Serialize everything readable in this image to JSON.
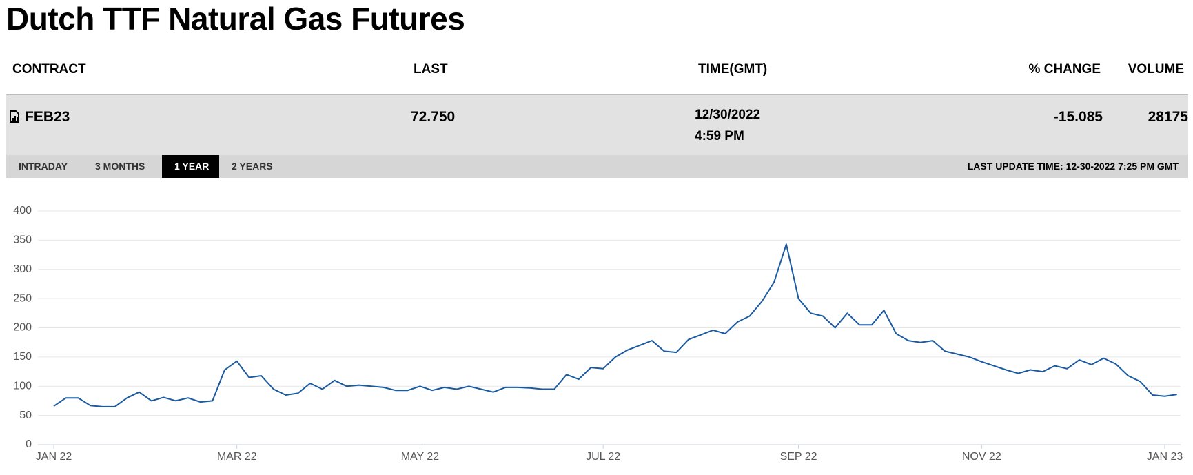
{
  "header": {
    "title": "Dutch TTF Natural Gas Futures"
  },
  "table": {
    "columns": [
      "CONTRACT",
      "LAST",
      "TIME(GMT)",
      "% CHANGE",
      "VOLUME"
    ],
    "rows": [
      {
        "contract": "FEB23",
        "last": "72.750",
        "date": "12/30/2022",
        "time": "4:59 PM",
        "change": "-15.085",
        "volume": "28175"
      }
    ]
  },
  "tabs": [
    "INTRADAY",
    "3 MONTHS",
    "1 YEAR",
    "2 YEARS"
  ],
  "last_update": "LAST UPDATE TIME: 12-30-2022 7:25 PM GMT",
  "chart_data": {
    "type": "line",
    "color": "#1a5aa0",
    "grid": true,
    "ylim": [
      0,
      400
    ],
    "yticks": [
      0,
      50,
      100,
      150,
      200,
      250,
      300,
      350,
      400
    ],
    "categories": [
      "JAN 22",
      null,
      null,
      null,
      null,
      null,
      null,
      null,
      null,
      null,
      null,
      null,
      null,
      null,
      null,
      "MAR 22",
      null,
      null,
      null,
      null,
      null,
      null,
      null,
      null,
      null,
      null,
      null,
      null,
      null,
      null,
      "MAY 22",
      null,
      null,
      null,
      null,
      null,
      null,
      null,
      null,
      null,
      null,
      null,
      null,
      null,
      null,
      "JUL 22",
      null,
      null,
      null,
      null,
      null,
      null,
      null,
      null,
      null,
      null,
      null,
      null,
      null,
      null,
      null,
      "SEP 22",
      null,
      null,
      null,
      null,
      null,
      null,
      null,
      null,
      null,
      null,
      null,
      null,
      null,
      null,
      "NOV 22",
      null,
      null,
      null,
      null,
      null,
      null,
      null,
      null,
      null,
      null,
      null,
      null,
      null,
      null,
      "JAN 23",
      null
    ],
    "values": [
      66,
      80,
      80,
      67,
      65,
      65,
      80,
      90,
      75,
      81,
      75,
      80,
      73,
      75,
      128,
      143,
      115,
      118,
      95,
      85,
      88,
      105,
      95,
      110,
      100,
      102,
      100,
      98,
      93,
      93,
      100,
      93,
      98,
      95,
      100,
      95,
      90,
      98,
      98,
      97,
      95,
      95,
      120,
      112,
      132,
      130,
      150,
      162,
      170,
      178,
      160,
      158,
      180,
      188,
      196,
      190,
      210,
      220,
      245,
      278,
      343,
      250,
      225,
      220,
      200,
      225,
      205,
      205,
      230,
      190,
      178,
      175,
      178,
      160,
      155,
      150,
      142,
      135,
      128,
      122,
      128,
      125,
      135,
      130,
      145,
      137,
      148,
      138,
      118,
      108,
      85,
      83,
      86
    ]
  }
}
